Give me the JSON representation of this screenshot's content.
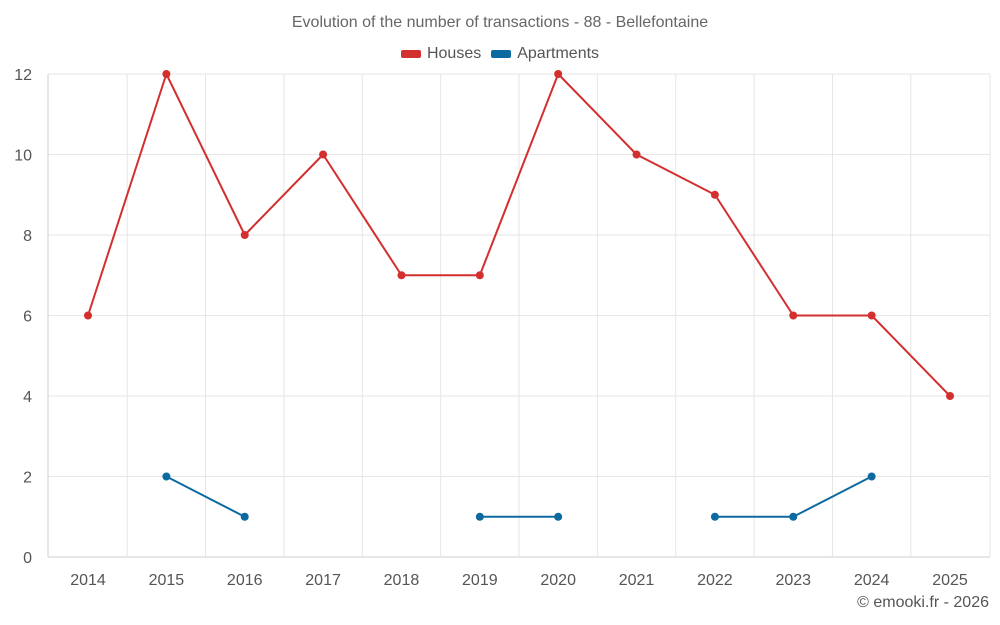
{
  "colors": {
    "houses": "#d32f2f",
    "apartments": "#0d6aa0",
    "grid": "#e6e6e6",
    "axis": "#cfcfcf"
  },
  "chart_data": {
    "type": "line",
    "title": "Evolution of the number of transactions - 88 - Bellefontaine",
    "xlabel": "",
    "ylabel": "",
    "categories": [
      "2014",
      "2015",
      "2016",
      "2017",
      "2018",
      "2019",
      "2020",
      "2021",
      "2022",
      "2023",
      "2024",
      "2025"
    ],
    "ylim": [
      0,
      12
    ],
    "yticks": [
      0,
      2,
      4,
      6,
      8,
      10,
      12
    ],
    "grid": true,
    "legend_position": "top-center",
    "series": [
      {
        "name": "Houses",
        "color_key": "houses",
        "values": [
          6,
          12,
          8,
          10,
          7,
          7,
          12,
          10,
          9,
          6,
          6,
          4
        ]
      },
      {
        "name": "Apartments",
        "color_key": "apartments",
        "values": [
          null,
          2,
          1,
          null,
          null,
          1,
          1,
          null,
          1,
          1,
          2,
          null
        ]
      }
    ]
  },
  "credit": "© emooki.fr - 2026"
}
